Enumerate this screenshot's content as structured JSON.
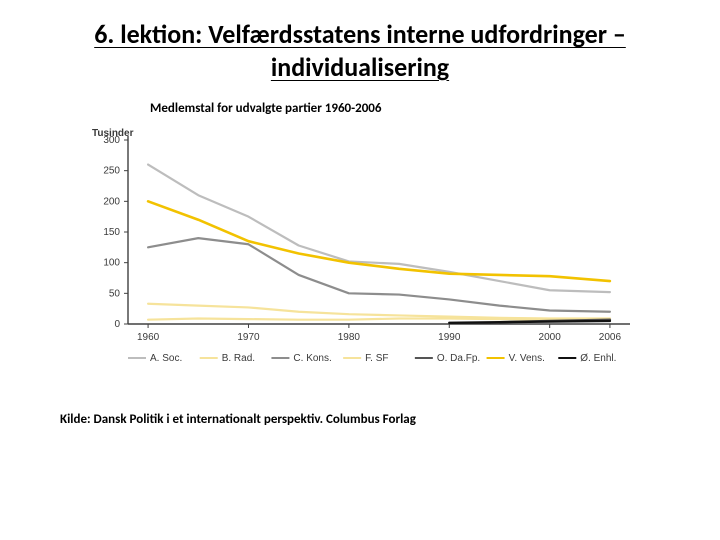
{
  "title_line1": "6. lektion: Velfærdsstatens interne udfordringer –",
  "title_line2": "individualisering",
  "chart_caption": "Medlemstal for udvalgte partier 1960-2006",
  "source": "Kilde: Dansk Politik i et internationalt perspektiv. Columbus Forlag",
  "chart": {
    "type": "line",
    "y_axis_title": "Tusinder",
    "background_color": "#ffffff",
    "axis_color": "#404040",
    "tick_font_size": 10,
    "x": {
      "ticks": [
        1960,
        1970,
        1980,
        1990,
        2000,
        2006
      ],
      "min": 1958,
      "max": 2008
    },
    "y": {
      "ticks": [
        0,
        50,
        100,
        150,
        200,
        250,
        300
      ],
      "min": 0,
      "max": 300
    },
    "series": [
      {
        "key": "soc",
        "label": "A. Soc.",
        "color": "#bdbdbd",
        "width": 2.2,
        "x": [
          1960,
          1965,
          1970,
          1975,
          1980,
          1985,
          1990,
          1995,
          2000,
          2006
        ],
        "y": [
          260,
          210,
          175,
          128,
          102,
          98,
          85,
          70,
          55,
          52
        ]
      },
      {
        "key": "rad",
        "label": "B. Rad.",
        "color": "#f6e39b",
        "width": 2.2,
        "x": [
          1960,
          1965,
          1970,
          1975,
          1980,
          1985,
          1990,
          1995,
          2000,
          2006
        ],
        "y": [
          33,
          30,
          27,
          20,
          16,
          14,
          12,
          10,
          9,
          9
        ]
      },
      {
        "key": "kons",
        "label": "C. Kons.",
        "color": "#8d8d8d",
        "width": 2.2,
        "x": [
          1960,
          1965,
          1970,
          1975,
          1980,
          1985,
          1990,
          1995,
          2000,
          2006
        ],
        "y": [
          125,
          140,
          130,
          80,
          50,
          48,
          40,
          30,
          22,
          20
        ]
      },
      {
        "key": "sf",
        "label": "F. SF",
        "color": "#f6e39b",
        "width": 2.2,
        "x": [
          1960,
          1965,
          1970,
          1975,
          1980,
          1985,
          1990,
          1995,
          2000,
          2006
        ],
        "y": [
          7,
          9,
          8,
          7,
          7,
          9,
          9,
          8,
          7,
          7
        ]
      },
      {
        "key": "dafp",
        "label": "O. Da.Fp.",
        "color": "#555555",
        "width": 2.4,
        "x": [
          1995,
          2000,
          2006
        ],
        "y": [
          3,
          5,
          7
        ]
      },
      {
        "key": "vens",
        "label": "V. Vens.",
        "color": "#f2c200",
        "width": 2.6,
        "x": [
          1960,
          1965,
          1970,
          1975,
          1980,
          1985,
          1990,
          1995,
          2000,
          2006
        ],
        "y": [
          200,
          170,
          135,
          115,
          100,
          90,
          82,
          80,
          78,
          70
        ]
      },
      {
        "key": "enhl",
        "label": "Ø. Enhl.",
        "color": "#111111",
        "width": 2.4,
        "x": [
          1990,
          1995,
          2000,
          2006
        ],
        "y": [
          2,
          3,
          4,
          5
        ]
      }
    ],
    "legend_order": [
      "soc",
      "rad",
      "kons",
      "sf",
      "dafp",
      "vens",
      "enhl"
    ]
  }
}
